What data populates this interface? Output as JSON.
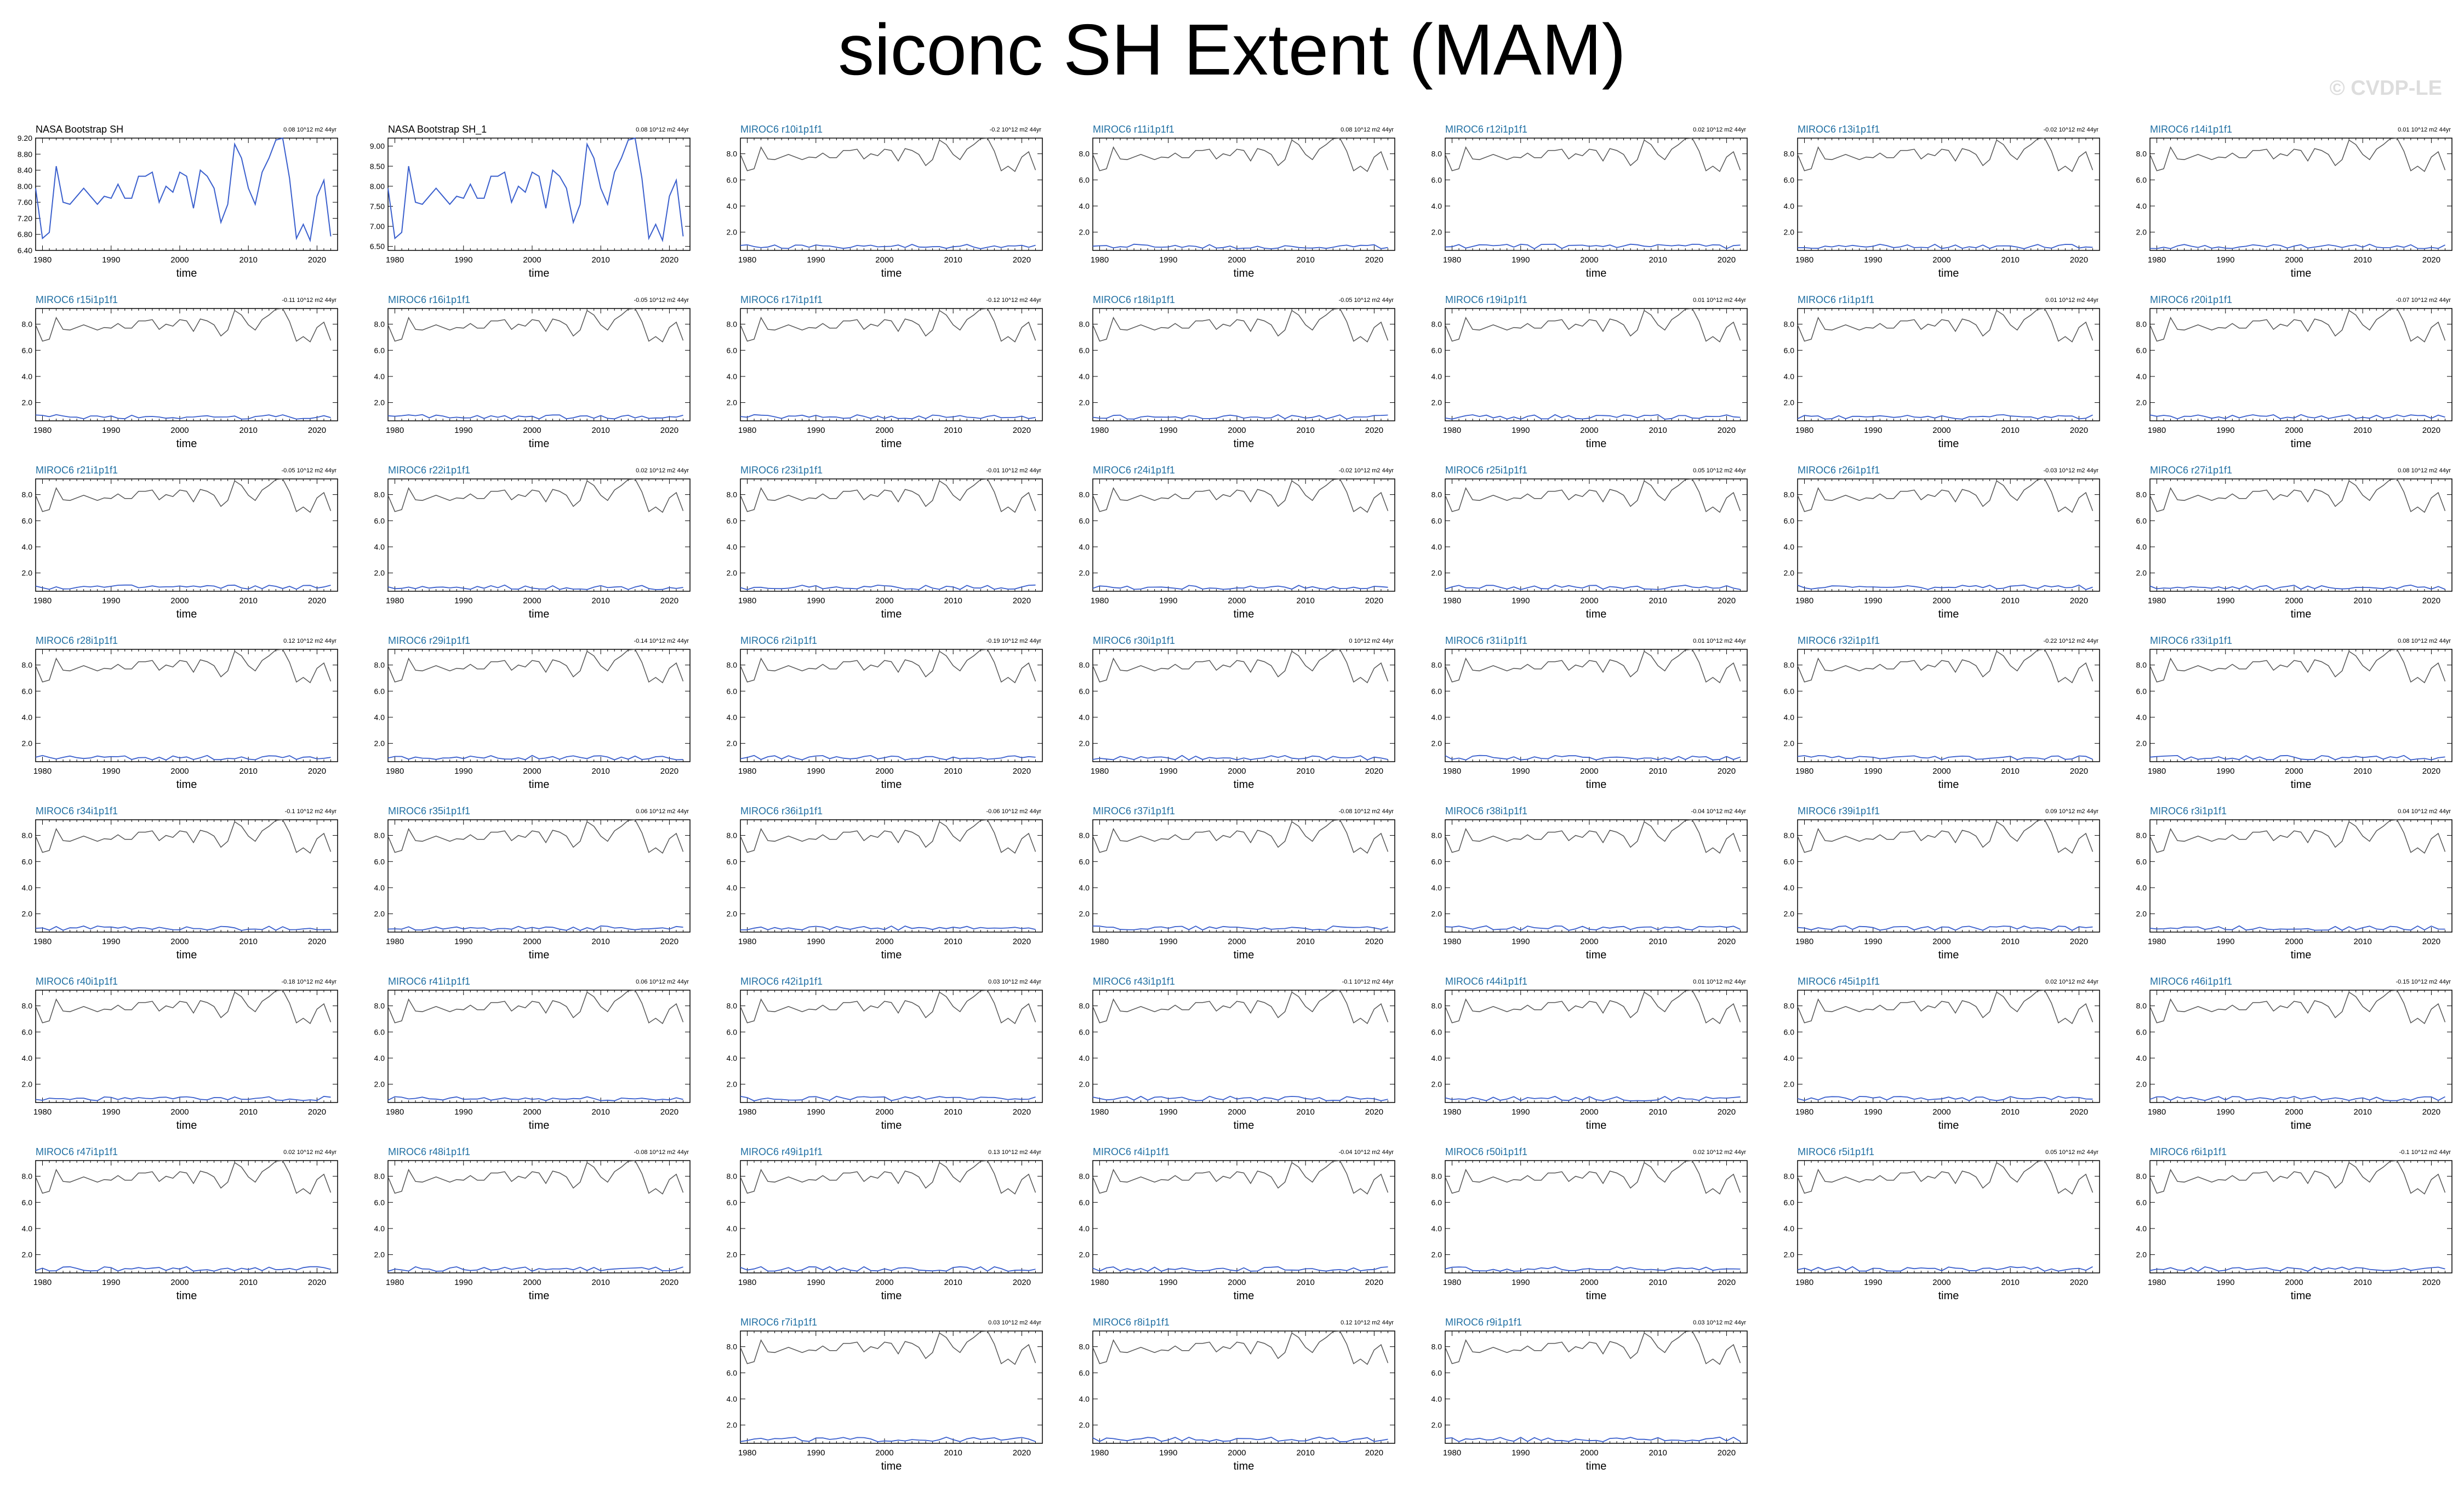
{
  "title": "siconc SH Extent (MAM)",
  "watermark": "© CVDP-LE",
  "colors": {
    "obs_line": "#3a5fcd",
    "member_line": "#3a5fcd",
    "obs_mean_line": "#555555",
    "model_title": "#1f6fa3",
    "obs_title": "#000000",
    "axis": "#000000"
  },
  "chart_data": {
    "type": "line",
    "xlabel": "time",
    "x_ticks": [
      1980,
      1990,
      2000,
      2010,
      2020
    ],
    "xlim": [
      1979,
      2023
    ],
    "years": [
      1979,
      1980,
      1981,
      1982,
      1983,
      1984,
      1985,
      1986,
      1987,
      1988,
      1989,
      1990,
      1991,
      1992,
      1993,
      1994,
      1995,
      1996,
      1997,
      1998,
      1999,
      2000,
      2001,
      2002,
      2003,
      2004,
      2005,
      2006,
      2007,
      2008,
      2009,
      2010,
      2011,
      2012,
      2013,
      2014,
      2015,
      2016,
      2017,
      2018,
      2019,
      2020,
      2021,
      2022
    ],
    "obs_values": [
      7.95,
      6.7,
      6.85,
      8.5,
      7.6,
      7.55,
      7.75,
      7.95,
      7.75,
      7.55,
      7.75,
      7.7,
      8.05,
      7.7,
      7.7,
      8.25,
      8.25,
      8.35,
      7.6,
      8.0,
      7.85,
      8.35,
      8.25,
      7.45,
      8.4,
      8.25,
      7.95,
      7.1,
      7.55,
      9.05,
      8.7,
      7.95,
      7.55,
      8.35,
      8.7,
      9.15,
      9.2,
      8.2,
      6.7,
      7.05,
      6.65,
      7.75,
      8.15,
      6.75
    ],
    "panels": [
      {
        "name": "NASA Bootstrap SH",
        "trend": "0.08 10^12 m2 44yr",
        "kind": "obs",
        "ylim": [
          6.4,
          9.2
        ],
        "yticks": [
          "9.20",
          "8.80",
          "8.40",
          "8.00",
          "7.60",
          "7.20",
          "6.80",
          "6.40"
        ]
      },
      {
        "name": "NASA Bootstrap SH_1",
        "trend": "0.08 10^12 m2 44yr",
        "kind": "obs",
        "ylim": [
          6.4,
          9.2
        ],
        "yticks": [
          "9.00",
          "8.50",
          "8.00",
          "7.50",
          "7.00",
          "6.50"
        ]
      },
      {
        "name": "MIROC6 r10i1p1f1",
        "trend": "-0.2 10^12 m2 44yr",
        "kind": "model"
      },
      {
        "name": "MIROC6 r11i1p1f1",
        "trend": "0.08 10^12 m2 44yr",
        "kind": "model"
      },
      {
        "name": "MIROC6 r12i1p1f1",
        "trend": "0.02 10^12 m2 44yr",
        "kind": "model"
      },
      {
        "name": "MIROC6 r13i1p1f1",
        "trend": "-0.02 10^12 m2 44yr",
        "kind": "model"
      },
      {
        "name": "MIROC6 r14i1p1f1",
        "trend": "0.01 10^12 m2 44yr",
        "kind": "model"
      },
      {
        "name": "MIROC6 r15i1p1f1",
        "trend": "-0.11 10^12 m2 44yr",
        "kind": "model"
      },
      {
        "name": "MIROC6 r16i1p1f1",
        "trend": "-0.05 10^12 m2 44yr",
        "kind": "model"
      },
      {
        "name": "MIROC6 r17i1p1f1",
        "trend": "-0.12 10^12 m2 44yr",
        "kind": "model"
      },
      {
        "name": "MIROC6 r18i1p1f1",
        "trend": "-0.05 10^12 m2 44yr",
        "kind": "model"
      },
      {
        "name": "MIROC6 r19i1p1f1",
        "trend": "0.01 10^12 m2 44yr",
        "kind": "model"
      },
      {
        "name": "MIROC6 r1i1p1f1",
        "trend": "0.01 10^12 m2 44yr",
        "kind": "model"
      },
      {
        "name": "MIROC6 r20i1p1f1",
        "trend": "-0.07 10^12 m2 44yr",
        "kind": "model"
      },
      {
        "name": "MIROC6 r21i1p1f1",
        "trend": "-0.05 10^12 m2 44yr",
        "kind": "model"
      },
      {
        "name": "MIROC6 r22i1p1f1",
        "trend": "0.02 10^12 m2 44yr",
        "kind": "model"
      },
      {
        "name": "MIROC6 r23i1p1f1",
        "trend": "-0.01 10^12 m2 44yr",
        "kind": "model"
      },
      {
        "name": "MIROC6 r24i1p1f1",
        "trend": "-0.02 10^12 m2 44yr",
        "kind": "model"
      },
      {
        "name": "MIROC6 r25i1p1f1",
        "trend": "0.05 10^12 m2 44yr",
        "kind": "model"
      },
      {
        "name": "MIROC6 r26i1p1f1",
        "trend": "-0.03 10^12 m2 44yr",
        "kind": "model"
      },
      {
        "name": "MIROC6 r27i1p1f1",
        "trend": "0.08 10^12 m2 44yr",
        "kind": "model"
      },
      {
        "name": "MIROC6 r28i1p1f1",
        "trend": "0.12 10^12 m2 44yr",
        "kind": "model"
      },
      {
        "name": "MIROC6 r29i1p1f1",
        "trend": "-0.14 10^12 m2 44yr",
        "kind": "model"
      },
      {
        "name": "MIROC6 r2i1p1f1",
        "trend": "-0.19 10^12 m2 44yr",
        "kind": "model"
      },
      {
        "name": "MIROC6 r30i1p1f1",
        "trend": "0 10^12 m2 44yr",
        "kind": "model"
      },
      {
        "name": "MIROC6 r31i1p1f1",
        "trend": "0.01 10^12 m2 44yr",
        "kind": "model"
      },
      {
        "name": "MIROC6 r32i1p1f1",
        "trend": "-0.22 10^12 m2 44yr",
        "kind": "model"
      },
      {
        "name": "MIROC6 r33i1p1f1",
        "trend": "0.08 10^12 m2 44yr",
        "kind": "model"
      },
      {
        "name": "MIROC6 r34i1p1f1",
        "trend": "-0.1 10^12 m2 44yr",
        "kind": "model"
      },
      {
        "name": "MIROC6 r35i1p1f1",
        "trend": "0.06 10^12 m2 44yr",
        "kind": "model"
      },
      {
        "name": "MIROC6 r36i1p1f1",
        "trend": "-0.06 10^12 m2 44yr",
        "kind": "model"
      },
      {
        "name": "MIROC6 r37i1p1f1",
        "trend": "-0.08 10^12 m2 44yr",
        "kind": "model"
      },
      {
        "name": "MIROC6 r38i1p1f1",
        "trend": "-0.04 10^12 m2 44yr",
        "kind": "model"
      },
      {
        "name": "MIROC6 r39i1p1f1",
        "trend": "0.09 10^12 m2 44yr",
        "kind": "model"
      },
      {
        "name": "MIROC6 r3i1p1f1",
        "trend": "0.04 10^12 m2 44yr",
        "kind": "model"
      },
      {
        "name": "MIROC6 r40i1p1f1",
        "trend": "-0.18 10^12 m2 44yr",
        "kind": "model"
      },
      {
        "name": "MIROC6 r41i1p1f1",
        "trend": "0.06 10^12 m2 44yr",
        "kind": "model"
      },
      {
        "name": "MIROC6 r42i1p1f1",
        "trend": "0.03 10^12 m2 44yr",
        "kind": "model"
      },
      {
        "name": "MIROC6 r43i1p1f1",
        "trend": "-0.1 10^12 m2 44yr",
        "kind": "model"
      },
      {
        "name": "MIROC6 r44i1p1f1",
        "trend": "0.01 10^12 m2 44yr",
        "kind": "model"
      },
      {
        "name": "MIROC6 r45i1p1f1",
        "trend": "0.02 10^12 m2 44yr",
        "kind": "model"
      },
      {
        "name": "MIROC6 r46i1p1f1",
        "trend": "-0.15 10^12 m2 44yr",
        "kind": "model"
      },
      {
        "name": "MIROC6 r47i1p1f1",
        "trend": "0.02 10^12 m2 44yr",
        "kind": "model"
      },
      {
        "name": "MIROC6 r48i1p1f1",
        "trend": "-0.08 10^12 m2 44yr",
        "kind": "model"
      },
      {
        "name": "MIROC6 r49i1p1f1",
        "trend": "0.13 10^12 m2 44yr",
        "kind": "model"
      },
      {
        "name": "MIROC6 r4i1p1f1",
        "trend": "-0.04 10^12 m2 44yr",
        "kind": "model"
      },
      {
        "name": "MIROC6 r50i1p1f1",
        "trend": "0.02 10^12 m2 44yr",
        "kind": "model"
      },
      {
        "name": "MIROC6 r5i1p1f1",
        "trend": "0.05 10^12 m2 44yr",
        "kind": "model"
      },
      {
        "name": "MIROC6 r6i1p1f1",
        "trend": "-0.1 10^12 m2 44yr",
        "kind": "model"
      },
      {
        "name": "MIROC6 r7i1p1f1",
        "trend": "0.03 10^12 m2 44yr",
        "kind": "model"
      },
      {
        "name": "MIROC6 r8i1p1f1",
        "trend": "0.12 10^12 m2 44yr",
        "kind": "model"
      },
      {
        "name": "MIROC6 r9i1p1f1",
        "trend": "0.03 10^12 m2 44yr",
        "kind": "model"
      }
    ],
    "model_ylim": [
      0.6,
      9.2
    ],
    "model_yticks": [
      "8.0",
      "6.0",
      "4.0",
      "2.0"
    ],
    "model_member_level": 0.9
  }
}
